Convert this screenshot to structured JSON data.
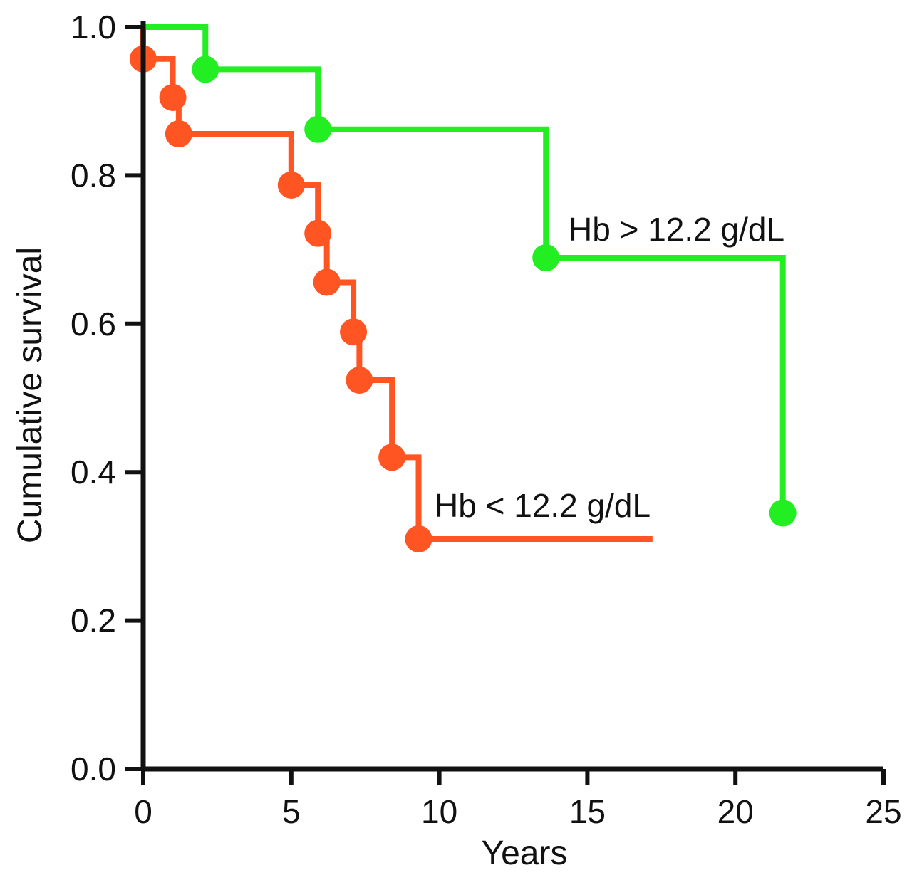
{
  "chart_data": {
    "type": "line",
    "subtype": "kaplan-meier step",
    "title": "",
    "xlabel": "Years",
    "ylabel": "Cumulative survival",
    "xlim": [
      0,
      25
    ],
    "ylim": [
      0,
      1.0
    ],
    "x_ticks": [
      "0",
      "5",
      "10",
      "15",
      "20",
      "25"
    ],
    "y_ticks": [
      "0.0",
      "0.2",
      "0.4",
      "0.6",
      "0.8",
      "1.0"
    ],
    "grid": false,
    "legend": "none",
    "series": [
      {
        "name": "Hb > 12.2 g/dL",
        "color": "#22ee22",
        "end_x": 21.6,
        "events": [
          {
            "x": 2.1,
            "y": 0.943
          },
          {
            "x": 5.9,
            "y": 0.862
          },
          {
            "x": 13.6,
            "y": 0.689
          },
          {
            "x": 21.6,
            "y": 0.345
          }
        ]
      },
      {
        "name": "Hb < 12.2 g/dL",
        "color": "#ff5522",
        "end_x": 17.2,
        "events": [
          {
            "x": 0.0,
            "y": 0.957
          },
          {
            "x": 1.0,
            "y": 0.905
          },
          {
            "x": 1.2,
            "y": 0.856
          },
          {
            "x": 5.0,
            "y": 0.787
          },
          {
            "x": 5.9,
            "y": 0.722
          },
          {
            "x": 6.2,
            "y": 0.656
          },
          {
            "x": 7.1,
            "y": 0.589
          },
          {
            "x": 7.3,
            "y": 0.524
          },
          {
            "x": 8.4,
            "y": 0.42
          },
          {
            "x": 9.3,
            "y": 0.31
          }
        ]
      }
    ]
  }
}
